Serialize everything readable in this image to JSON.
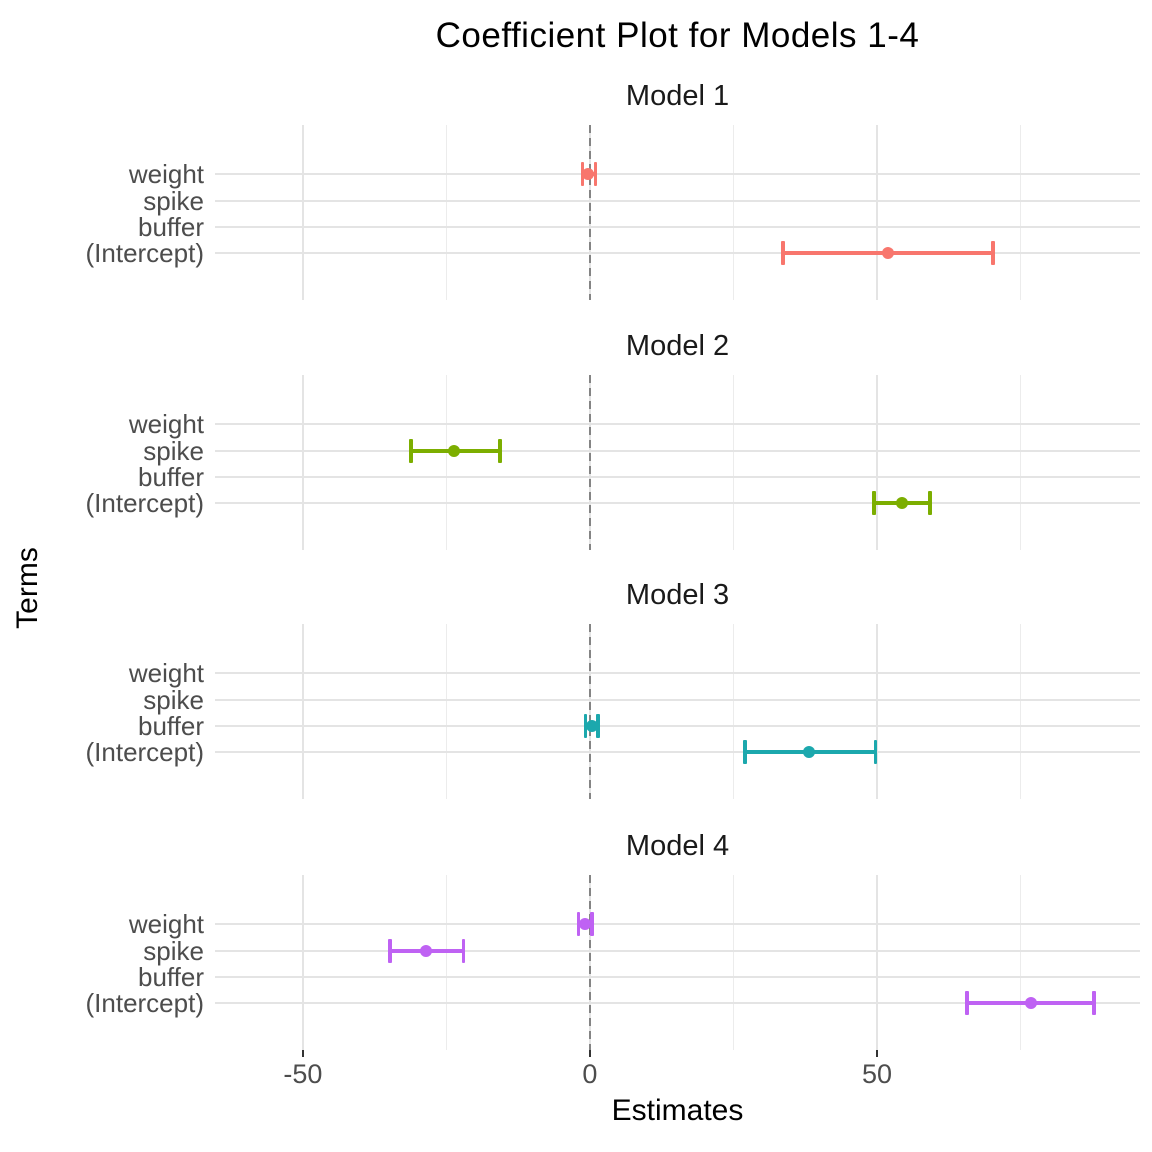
{
  "chart_data": {
    "type": "scatter",
    "subtype": "coefficient-forest-plot",
    "title": "Coefficient Plot for Models 1-4",
    "xlabel": "Estimates",
    "ylabel": "Terms",
    "categories_top_to_bottom": [
      "weight",
      "spike",
      "buffer",
      "(Intercept)"
    ],
    "xlim": [
      -65.3,
      95.8
    ],
    "x_ticks": [
      -50,
      0,
      50
    ],
    "x_minor_ticks": [
      -25,
      25,
      75
    ],
    "zero_reference_line": 0,
    "grid": true,
    "legend_position": "none",
    "facets": [
      {
        "label": "Model 1",
        "color": "#F8766D",
        "points": [
          {
            "term": "weight",
            "estimate": -0.3,
            "ci_low": -1.3,
            "ci_high": 1.0
          },
          {
            "term": "(Intercept)",
            "estimate": 51.9,
            "ci_low": 33.6,
            "ci_high": 70.2
          }
        ]
      },
      {
        "label": "Model 2",
        "color": "#7CAE00",
        "points": [
          {
            "term": "spike",
            "estimate": -23.7,
            "ci_low": -31.2,
            "ci_high": -15.7
          },
          {
            "term": "(Intercept)",
            "estimate": 54.4,
            "ci_low": 49.5,
            "ci_high": 59.2
          }
        ]
      },
      {
        "label": "Model 3",
        "color": "#1CA8AD",
        "points": [
          {
            "term": "buffer",
            "estimate": 0.3,
            "ci_low": -0.8,
            "ci_high": 1.4
          },
          {
            "term": "(Intercept)",
            "estimate": 38.2,
            "ci_low": 27.0,
            "ci_high": 49.7
          }
        ]
      },
      {
        "label": "Model 4",
        "color": "#BF62F3",
        "points": [
          {
            "term": "weight",
            "estimate": -0.9,
            "ci_low": -2.0,
            "ci_high": 0.4
          },
          {
            "term": "spike",
            "estimate": -28.6,
            "ci_low": -34.8,
            "ci_high": -22.0
          },
          {
            "term": "(Intercept)",
            "estimate": 76.8,
            "ci_low": 65.7,
            "ci_high": 87.8
          }
        ]
      }
    ]
  }
}
